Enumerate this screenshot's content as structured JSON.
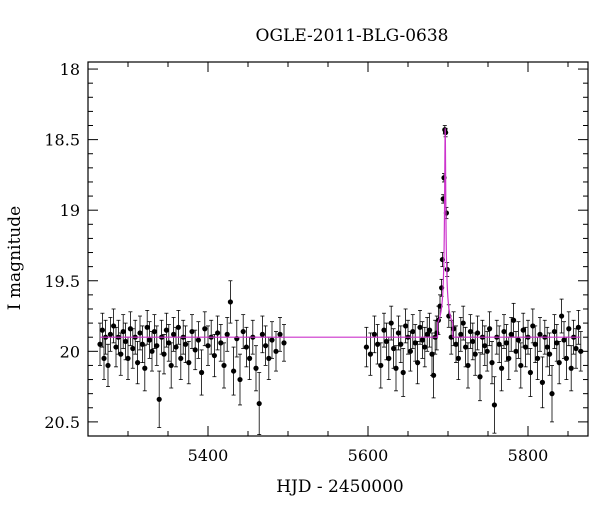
{
  "chart_data": {
    "type": "scatter",
    "title": "OGLE-2011-BLG-0638",
    "xlabel": "HJD - 2450000",
    "ylabel": "I magnitude",
    "xlim": [
      5250,
      5875
    ],
    "ylim": [
      20.6,
      17.95
    ],
    "y_inverted": true,
    "x_ticks": [
      5400,
      5600,
      5800
    ],
    "y_ticks": [
      18,
      18.5,
      19,
      19.5,
      20,
      20.5
    ],
    "grid": false,
    "legend": "none",
    "series": [
      {
        "kind": "points_with_errorbars",
        "color": "#000000",
        "points": [
          {
            "x": 5265,
            "y": 19.95,
            "err": 0.15
          },
          {
            "x": 5268,
            "y": 19.85,
            "err": 0.12
          },
          {
            "x": 5270,
            "y": 20.05,
            "err": 0.15
          },
          {
            "x": 5272,
            "y": 19.9,
            "err": 0.12
          },
          {
            "x": 5275,
            "y": 20.1,
            "err": 0.15
          },
          {
            "x": 5278,
            "y": 19.88,
            "err": 0.12
          },
          {
            "x": 5282,
            "y": 19.82,
            "err": 0.12
          },
          {
            "x": 5285,
            "y": 19.97,
            "err": 0.14
          },
          {
            "x": 5288,
            "y": 19.9,
            "err": 0.12
          },
          {
            "x": 5291,
            "y": 20.02,
            "err": 0.15
          },
          {
            "x": 5294,
            "y": 19.86,
            "err": 0.12
          },
          {
            "x": 5297,
            "y": 19.93,
            "err": 0.13
          },
          {
            "x": 5300,
            "y": 20.05,
            "err": 0.15
          },
          {
            "x": 5303,
            "y": 19.84,
            "err": 0.12
          },
          {
            "x": 5306,
            "y": 19.98,
            "err": 0.14
          },
          {
            "x": 5309,
            "y": 19.9,
            "err": 0.12
          },
          {
            "x": 5312,
            "y": 20.08,
            "err": 0.15
          },
          {
            "x": 5315,
            "y": 19.87,
            "err": 0.12
          },
          {
            "x": 5318,
            "y": 19.95,
            "err": 0.13
          },
          {
            "x": 5321,
            "y": 20.12,
            "err": 0.16
          },
          {
            "x": 5324,
            "y": 19.83,
            "err": 0.12
          },
          {
            "x": 5327,
            "y": 19.92,
            "err": 0.13
          },
          {
            "x": 5330,
            "y": 20.0,
            "err": 0.14
          },
          {
            "x": 5333,
            "y": 19.86,
            "err": 0.12
          },
          {
            "x": 5336,
            "y": 19.96,
            "err": 0.14
          },
          {
            "x": 5339,
            "y": 20.34,
            "err": 0.2
          },
          {
            "x": 5342,
            "y": 19.9,
            "err": 0.12
          },
          {
            "x": 5345,
            "y": 20.02,
            "err": 0.14
          },
          {
            "x": 5348,
            "y": 19.85,
            "err": 0.12
          },
          {
            "x": 5351,
            "y": 19.94,
            "err": 0.13
          },
          {
            "x": 5354,
            "y": 20.1,
            "err": 0.16
          },
          {
            "x": 5357,
            "y": 19.88,
            "err": 0.12
          },
          {
            "x": 5360,
            "y": 19.97,
            "err": 0.14
          },
          {
            "x": 5363,
            "y": 19.83,
            "err": 0.12
          },
          {
            "x": 5366,
            "y": 20.05,
            "err": 0.15
          },
          {
            "x": 5369,
            "y": 19.9,
            "err": 0.12
          },
          {
            "x": 5372,
            "y": 19.95,
            "err": 0.13
          },
          {
            "x": 5376,
            "y": 20.08,
            "err": 0.15
          },
          {
            "x": 5380,
            "y": 19.86,
            "err": 0.12
          },
          {
            "x": 5384,
            "y": 19.99,
            "err": 0.14
          },
          {
            "x": 5388,
            "y": 19.92,
            "err": 0.13
          },
          {
            "x": 5392,
            "y": 20.15,
            "err": 0.16
          },
          {
            "x": 5396,
            "y": 19.84,
            "err": 0.12
          },
          {
            "x": 5400,
            "y": 19.96,
            "err": 0.14
          },
          {
            "x": 5404,
            "y": 19.9,
            "err": 0.12
          },
          {
            "x": 5408,
            "y": 20.03,
            "err": 0.15
          },
          {
            "x": 5412,
            "y": 19.87,
            "err": 0.12
          },
          {
            "x": 5416,
            "y": 19.94,
            "err": 0.13
          },
          {
            "x": 5420,
            "y": 20.1,
            "err": 0.16
          },
          {
            "x": 5424,
            "y": 19.88,
            "err": 0.12
          },
          {
            "x": 5428,
            "y": 19.65,
            "err": 0.15
          },
          {
            "x": 5432,
            "y": 20.14,
            "err": 0.17
          },
          {
            "x": 5436,
            "y": 19.91,
            "err": 0.13
          },
          {
            "x": 5440,
            "y": 20.2,
            "err": 0.18
          },
          {
            "x": 5444,
            "y": 19.86,
            "err": 0.12
          },
          {
            "x": 5448,
            "y": 19.97,
            "err": 0.14
          },
          {
            "x": 5452,
            "y": 20.05,
            "err": 0.15
          },
          {
            "x": 5456,
            "y": 19.9,
            "err": 0.12
          },
          {
            "x": 5460,
            "y": 20.12,
            "err": 0.16
          },
          {
            "x": 5464,
            "y": 20.37,
            "err": 0.22
          },
          {
            "x": 5468,
            "y": 19.88,
            "err": 0.13
          },
          {
            "x": 5472,
            "y": 19.96,
            "err": 0.14
          },
          {
            "x": 5476,
            "y": 20.05,
            "err": 0.15
          },
          {
            "x": 5480,
            "y": 19.92,
            "err": 0.13
          },
          {
            "x": 5485,
            "y": 20.0,
            "err": 0.14
          },
          {
            "x": 5490,
            "y": 19.88,
            "err": 0.12
          },
          {
            "x": 5495,
            "y": 19.94,
            "err": 0.13
          },
          {
            "x": 5598,
            "y": 19.97,
            "err": 0.14
          },
          {
            "x": 5603,
            "y": 20.02,
            "err": 0.15
          },
          {
            "x": 5608,
            "y": 19.88,
            "err": 0.13
          },
          {
            "x": 5612,
            "y": 19.95,
            "err": 0.14
          },
          {
            "x": 5616,
            "y": 20.1,
            "err": 0.16
          },
          {
            "x": 5620,
            "y": 19.85,
            "err": 0.12
          },
          {
            "x": 5623,
            "y": 19.93,
            "err": 0.13
          },
          {
            "x": 5626,
            "y": 20.05,
            "err": 0.15
          },
          {
            "x": 5629,
            "y": 19.8,
            "err": 0.12
          },
          {
            "x": 5632,
            "y": 19.98,
            "err": 0.14
          },
          {
            "x": 5635,
            "y": 20.12,
            "err": 0.16
          },
          {
            "x": 5638,
            "y": 19.87,
            "err": 0.12
          },
          {
            "x": 5641,
            "y": 19.95,
            "err": 0.13
          },
          {
            "x": 5644,
            "y": 20.15,
            "err": 0.17
          },
          {
            "x": 5647,
            "y": 19.82,
            "err": 0.12
          },
          {
            "x": 5650,
            "y": 19.9,
            "err": 0.12
          },
          {
            "x": 5653,
            "y": 20.0,
            "err": 0.14
          },
          {
            "x": 5656,
            "y": 19.86,
            "err": 0.12
          },
          {
            "x": 5659,
            "y": 19.94,
            "err": 0.13
          },
          {
            "x": 5662,
            "y": 20.08,
            "err": 0.15
          },
          {
            "x": 5665,
            "y": 19.83,
            "err": 0.12
          },
          {
            "x": 5668,
            "y": 19.92,
            "err": 0.13
          },
          {
            "x": 5671,
            "y": 19.97,
            "err": 0.14
          },
          {
            "x": 5674,
            "y": 19.88,
            "err": 0.12
          },
          {
            "x": 5677,
            "y": 19.85,
            "err": 0.12
          },
          {
            "x": 5680,
            "y": 20.02,
            "err": 0.15
          },
          {
            "x": 5682,
            "y": 20.17,
            "err": 0.16
          },
          {
            "x": 5684,
            "y": 19.9,
            "err": 0.12
          },
          {
            "x": 5686,
            "y": 19.87,
            "err": 0.12
          },
          {
            "x": 5688,
            "y": 19.78,
            "err": 0.1
          },
          {
            "x": 5690,
            "y": 19.68,
            "err": 0.08
          },
          {
            "x": 5692,
            "y": 19.55,
            "err": 0.06
          },
          {
            "x": 5693,
            "y": 19.35,
            "err": 0.05
          },
          {
            "x": 5694,
            "y": 18.92,
            "err": 0.03
          },
          {
            "x": 5695,
            "y": 18.77,
            "err": 0.03
          },
          {
            "x": 5696,
            "y": 18.43,
            "err": 0.03
          },
          {
            "x": 5697,
            "y": 18.45,
            "err": 0.03
          },
          {
            "x": 5698,
            "y": 19.02,
            "err": 0.04
          },
          {
            "x": 5699,
            "y": 19.42,
            "err": 0.05
          },
          {
            "x": 5701,
            "y": 19.75,
            "err": 0.08
          },
          {
            "x": 5704,
            "y": 19.9,
            "err": 0.12
          },
          {
            "x": 5707,
            "y": 19.84,
            "err": 0.12
          },
          {
            "x": 5710,
            "y": 19.95,
            "err": 0.13
          },
          {
            "x": 5713,
            "y": 20.05,
            "err": 0.15
          },
          {
            "x": 5716,
            "y": 19.88,
            "err": 0.12
          },
          {
            "x": 5719,
            "y": 19.8,
            "err": 0.12
          },
          {
            "x": 5722,
            "y": 19.97,
            "err": 0.14
          },
          {
            "x": 5725,
            "y": 20.1,
            "err": 0.16
          },
          {
            "x": 5728,
            "y": 19.86,
            "err": 0.12
          },
          {
            "x": 5731,
            "y": 19.93,
            "err": 0.13
          },
          {
            "x": 5734,
            "y": 20.02,
            "err": 0.15
          },
          {
            "x": 5737,
            "y": 19.87,
            "err": 0.12
          },
          {
            "x": 5740,
            "y": 20.18,
            "err": 0.17
          },
          {
            "x": 5743,
            "y": 19.9,
            "err": 0.12
          },
          {
            "x": 5746,
            "y": 19.96,
            "err": 0.14
          },
          {
            "x": 5749,
            "y": 20.0,
            "err": 0.14
          },
          {
            "x": 5752,
            "y": 19.84,
            "err": 0.12
          },
          {
            "x": 5755,
            "y": 20.08,
            "err": 0.15
          },
          {
            "x": 5758,
            "y": 20.38,
            "err": 0.2
          },
          {
            "x": 5761,
            "y": 19.9,
            "err": 0.12
          },
          {
            "x": 5764,
            "y": 19.95,
            "err": 0.13
          },
          {
            "x": 5767,
            "y": 20.12,
            "err": 0.16
          },
          {
            "x": 5770,
            "y": 19.86,
            "err": 0.12
          },
          {
            "x": 5773,
            "y": 19.94,
            "err": 0.13
          },
          {
            "x": 5776,
            "y": 20.05,
            "err": 0.15
          },
          {
            "x": 5779,
            "y": 19.88,
            "err": 0.12
          },
          {
            "x": 5782,
            "y": 19.78,
            "err": 0.12
          },
          {
            "x": 5785,
            "y": 20.0,
            "err": 0.14
          },
          {
            "x": 5788,
            "y": 19.92,
            "err": 0.13
          },
          {
            "x": 5791,
            "y": 20.1,
            "err": 0.16
          },
          {
            "x": 5794,
            "y": 19.85,
            "err": 0.12
          },
          {
            "x": 5797,
            "y": 19.97,
            "err": 0.14
          },
          {
            "x": 5800,
            "y": 19.9,
            "err": 0.12
          },
          {
            "x": 5803,
            "y": 20.15,
            "err": 0.17
          },
          {
            "x": 5806,
            "y": 19.82,
            "err": 0.12
          },
          {
            "x": 5809,
            "y": 19.95,
            "err": 0.13
          },
          {
            "x": 5812,
            "y": 20.05,
            "err": 0.15
          },
          {
            "x": 5815,
            "y": 19.88,
            "err": 0.12
          },
          {
            "x": 5818,
            "y": 20.22,
            "err": 0.18
          },
          {
            "x": 5821,
            "y": 19.9,
            "err": 0.12
          },
          {
            "x": 5824,
            "y": 19.97,
            "err": 0.14
          },
          {
            "x": 5827,
            "y": 20.02,
            "err": 0.15
          },
          {
            "x": 5830,
            "y": 20.3,
            "err": 0.2
          },
          {
            "x": 5833,
            "y": 19.86,
            "err": 0.12
          },
          {
            "x": 5836,
            "y": 19.94,
            "err": 0.13
          },
          {
            "x": 5839,
            "y": 20.08,
            "err": 0.15
          },
          {
            "x": 5842,
            "y": 19.75,
            "err": 0.12
          },
          {
            "x": 5845,
            "y": 19.92,
            "err": 0.13
          },
          {
            "x": 5848,
            "y": 20.05,
            "err": 0.15
          },
          {
            "x": 5851,
            "y": 19.84,
            "err": 0.12
          },
          {
            "x": 5854,
            "y": 20.12,
            "err": 0.16
          },
          {
            "x": 5857,
            "y": 19.9,
            "err": 0.12
          },
          {
            "x": 5860,
            "y": 19.98,
            "err": 0.14
          },
          {
            "x": 5863,
            "y": 19.83,
            "err": 0.12
          },
          {
            "x": 5866,
            "y": 20.0,
            "err": 0.14
          }
        ]
      },
      {
        "kind": "model_curve",
        "color": "#cc33cc",
        "baseline": 19.9,
        "peak_x": 5696.5,
        "peak_y": 18.42,
        "width_days": 1.6
      }
    ]
  }
}
